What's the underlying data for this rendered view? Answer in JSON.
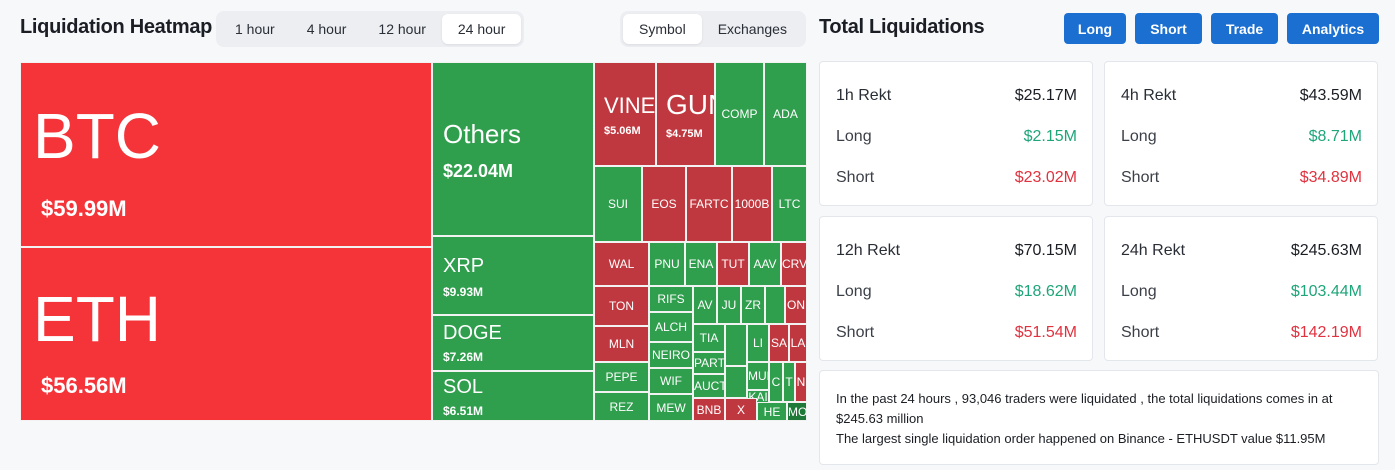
{
  "heatmap": {
    "title": "Liquidation Heatmap",
    "timeframes": [
      "1 hour",
      "4 hour",
      "12 hour",
      "24 hour"
    ],
    "active_timeframe": "24 hour",
    "modes": [
      "Symbol",
      "Exchanges"
    ],
    "active_mode": "Symbol"
  },
  "tiles_big": [
    {
      "name": "tile-btc",
      "sym": "BTC",
      "val": "$59.99M",
      "color": "#f5343a"
    },
    {
      "name": "tile-eth",
      "sym": "ETH",
      "val": "$56.56M",
      "color": "#f5343a"
    },
    {
      "name": "tile-others",
      "sym": "Others",
      "val": "$22.04M",
      "color": "#2f9e4d"
    },
    {
      "name": "tile-xrp",
      "sym": "XRP",
      "val": "$9.93M",
      "color": "#2f9e4d"
    },
    {
      "name": "tile-doge",
      "sym": "DOGE",
      "val": "$7.26M",
      "color": "#2f9e4d"
    },
    {
      "name": "tile-sol",
      "sym": "SOL",
      "val": "$6.51M",
      "color": "#2f9e4d"
    },
    {
      "name": "tile-vine",
      "sym": "VINE",
      "val": "$5.06M",
      "color": "#c0383f"
    },
    {
      "name": "tile-gun",
      "sym": "GUN",
      "val": "$4.75M",
      "color": "#c0383f"
    }
  ],
  "tiles_small": [
    "COMP",
    "ADA",
    "SUI",
    "EOS",
    "FARTC",
    "1000B",
    "LTC",
    "WAL",
    "PNU",
    "ENA",
    "TUT",
    "AAV",
    "CRV",
    "TON",
    "RIFS",
    "AV",
    "JU",
    "ZR",
    "ON",
    "ALCH",
    "TIA",
    "LI",
    "SA",
    "LA",
    "FI",
    "MLN",
    "NEIRO",
    "PART",
    "C",
    "T",
    "N",
    "PEPE",
    "MUBA",
    "WIF",
    "AUCT",
    "KAI",
    "REZ",
    "MEW",
    "BNB",
    "X",
    "HE",
    "MO"
  ],
  "total": {
    "title": "Total Liquidations",
    "buttons": [
      "Long",
      "Short",
      "Trade",
      "Analytics"
    ],
    "cards": [
      {
        "period": "1h Rekt",
        "total": "$25.17M",
        "long": "$2.15M",
        "short": "$23.02M"
      },
      {
        "period": "4h Rekt",
        "total": "$43.59M",
        "long": "$8.71M",
        "short": "$34.89M"
      },
      {
        "period": "12h Rekt",
        "total": "$70.15M",
        "long": "$18.62M",
        "short": "$51.54M"
      },
      {
        "period": "24h Rekt",
        "total": "$245.63M",
        "long": "$103.44M",
        "short": "$142.19M"
      }
    ],
    "long_label": "Long",
    "short_label": "Short",
    "info_line1": "In the past 24 hours , 93,046 traders were liquidated , the total liquidations comes in at $245.63 million",
    "info_line2": "The largest single liquidation order happened on Binance - ETHUSDT value $11.95M"
  },
  "colors": {
    "accent": "#1a6fd1",
    "long": "#1fa57a",
    "short": "#e0323f",
    "down": "#f5343a",
    "up": "#2f9e4d"
  }
}
